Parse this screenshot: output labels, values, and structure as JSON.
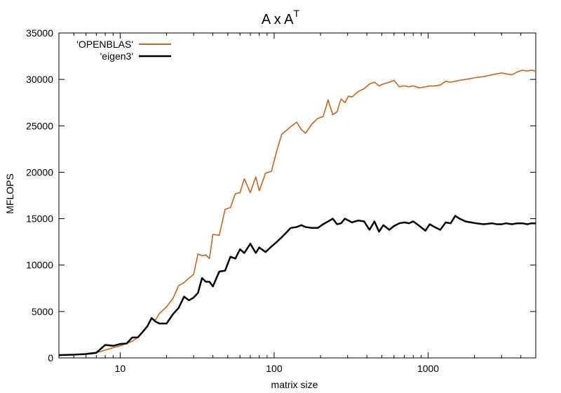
{
  "chart_data": {
    "type": "line",
    "title": "A x A",
    "title_superscript": "T",
    "xlabel": "matrix size",
    "ylabel": "MFLOPS",
    "xscale": "log",
    "xlim": [
      4,
      5000
    ],
    "ylim": [
      0,
      35000
    ],
    "xticks": [
      10,
      100,
      1000
    ],
    "xtick_labels": [
      "10",
      "100",
      "1000"
    ],
    "yticks": [
      0,
      5000,
      10000,
      15000,
      20000,
      25000,
      30000,
      35000
    ],
    "ytick_labels": [
      "0",
      "5000",
      "10000",
      "15000",
      "20000",
      "25000",
      "30000",
      "35000"
    ],
    "grid": false,
    "legend_position": "top-left",
    "x": [
      4,
      5,
      6,
      7,
      7.5,
      8,
      9,
      10,
      11,
      12,
      13,
      14,
      15,
      16,
      17,
      18,
      20,
      22,
      24,
      26,
      28,
      30,
      32,
      34,
      36,
      38,
      40,
      44,
      48,
      52,
      56,
      60,
      64,
      70,
      76,
      80,
      88,
      96,
      104,
      112,
      120,
      128,
      140,
      150,
      160,
      176,
      192,
      208,
      224,
      240,
      256,
      272,
      288,
      304,
      320,
      352,
      384,
      416,
      448,
      480,
      512,
      560,
      600,
      650,
      700,
      750,
      800,
      880,
      960,
      1024,
      1100,
      1200,
      1300,
      1400,
      1500,
      1600,
      1750,
      1900,
      2048,
      2300,
      2600,
      2800,
      3000,
      3200,
      3500,
      3800,
      4096,
      4400,
      4700,
      5000
    ],
    "series": [
      {
        "name": "'OPENBLAS'",
        "color": "#c8651b",
        "values": [
          250,
          350,
          450,
          600,
          700,
          850,
          1100,
          1300,
          1550,
          1800,
          2200,
          2800,
          3400,
          4200,
          4100,
          4800,
          5500,
          6400,
          7800,
          8100,
          8600,
          9000,
          11200,
          11000,
          11100,
          10700,
          13300,
          13200,
          16000,
          16200,
          17700,
          17800,
          19300,
          17800,
          19500,
          18000,
          19900,
          20100,
          22300,
          24100,
          24500,
          24900,
          25400,
          24600,
          24200,
          25200,
          25800,
          26000,
          27800,
          26200,
          26500,
          27900,
          27500,
          28200,
          28100,
          28700,
          29000,
          29500,
          29700,
          29300,
          29500,
          29700,
          29900,
          29200,
          29300,
          29200,
          29300,
          29100,
          29200,
          29300,
          29300,
          29400,
          29800,
          29700,
          29800,
          29900,
          30000,
          30100,
          30200,
          30300,
          30500,
          30600,
          30700,
          30600,
          30500,
          30800,
          31000,
          30900,
          31000,
          30900
        ]
      },
      {
        "name": "'eigen3'",
        "color": "#000000",
        "values": [
          300,
          350,
          420,
          550,
          1000,
          1400,
          1300,
          1500,
          1550,
          2200,
          2200,
          2800,
          3400,
          4300,
          3900,
          3700,
          3700,
          4700,
          5400,
          6600,
          6200,
          6500,
          7000,
          8600,
          8200,
          8200,
          7700,
          9300,
          9400,
          10900,
          10700,
          11700,
          11300,
          12300,
          11300,
          11900,
          11400,
          12000,
          12500,
          13000,
          13500,
          14000,
          14100,
          14300,
          14100,
          14000,
          14000,
          14400,
          14700,
          15000,
          14400,
          14500,
          15000,
          14800,
          14600,
          14800,
          14700,
          13800,
          14700,
          13600,
          14300,
          13800,
          14200,
          14500,
          14600,
          14500,
          14700,
          14200,
          13700,
          14400,
          14100,
          13800,
          14600,
          14500,
          15300,
          15000,
          14700,
          14600,
          14500,
          14400,
          14500,
          14400,
          14400,
          14500,
          14400,
          14500,
          14500,
          14400,
          14500,
          14500
        ]
      }
    ]
  }
}
